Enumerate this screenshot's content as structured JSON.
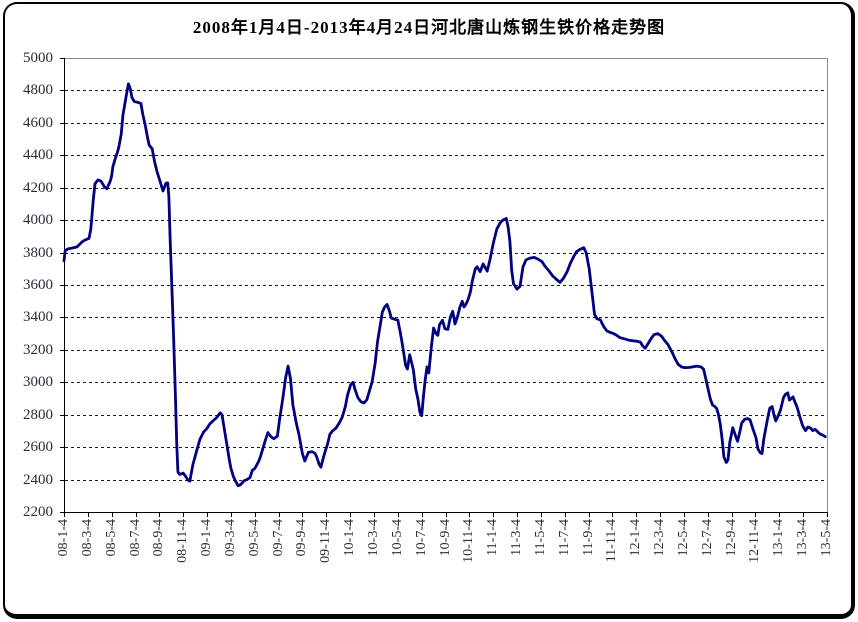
{
  "title": "2008年1月4日-2013年4月24日河北唐山炼钢生铁价格走势图",
  "colors": {
    "line": "#000080",
    "axis": "#000000",
    "plot_border": "#8c8c8c",
    "gridline": "#1c1c1c",
    "tick_label": "#2e2b38",
    "background": "#ffffff",
    "frame_border": "#000000"
  },
  "chart_data": {
    "type": "line",
    "title": "2008年1月4日-2013年4月24日河北唐山炼钢生铁价格走势图",
    "xlabel": "",
    "ylabel": "",
    "ylim": [
      2200,
      5000
    ],
    "y_tick_step": 200,
    "y_ticks": [
      2200,
      2400,
      2600,
      2800,
      3000,
      3200,
      3400,
      3600,
      3800,
      4000,
      4200,
      4400,
      4600,
      4800,
      5000
    ],
    "grid": "horizontal dashed lines at each 200 from 2400 to 4800",
    "legend": "none",
    "x_unit": "months since 2008-01-04",
    "xlim_months": [
      0,
      64
    ],
    "x_tick_labels": [
      "08-1-4",
      "08-3-4",
      "08-5-4",
      "08-7-4",
      "08-9-4",
      "08-11-4",
      "09-1-4",
      "09-3-4",
      "09-5-4",
      "09-7-4",
      "09-9-4",
      "09-11-4",
      "10-1-4",
      "10-3-4",
      "10-5-4",
      "10-7-4",
      "10-9-4",
      "10-11-4",
      "11-1-4",
      "11-3-4",
      "11-5-4",
      "11-7-4",
      "11-9-4",
      "11-11-4",
      "12-1-4",
      "12-3-4",
      "12-5-4",
      "12-7-4",
      "12-9-4",
      "12-11-4",
      "13-1-4",
      "13-3-4",
      "13-5-4"
    ],
    "series": [
      {
        "name": "河北唐山炼钢生铁价格",
        "color": "#000080",
        "points": [
          [
            0,
            3750
          ],
          [
            0.1,
            3810
          ],
          [
            0.3,
            3822
          ],
          [
            0.8,
            3830
          ],
          [
            1.1,
            3835
          ],
          [
            1.5,
            3865
          ],
          [
            1.7,
            3875
          ],
          [
            2.1,
            3888
          ],
          [
            2.25,
            3945
          ],
          [
            2.35,
            4030
          ],
          [
            2.45,
            4120
          ],
          [
            2.6,
            4225
          ],
          [
            2.85,
            4248
          ],
          [
            3.1,
            4240
          ],
          [
            3.4,
            4205
          ],
          [
            3.6,
            4193
          ],
          [
            3.9,
            4245
          ],
          [
            4.0,
            4275
          ],
          [
            4.1,
            4330
          ],
          [
            4.3,
            4380
          ],
          [
            4.45,
            4412
          ],
          [
            4.6,
            4450
          ],
          [
            4.8,
            4530
          ],
          [
            4.95,
            4650
          ],
          [
            5.1,
            4715
          ],
          [
            5.25,
            4780
          ],
          [
            5.4,
            4840
          ],
          [
            5.55,
            4812
          ],
          [
            5.7,
            4755
          ],
          [
            5.9,
            4732
          ],
          [
            6.2,
            4726
          ],
          [
            6.45,
            4720
          ],
          [
            6.6,
            4655
          ],
          [
            6.8,
            4590
          ],
          [
            7.0,
            4510
          ],
          [
            7.15,
            4462
          ],
          [
            7.4,
            4440
          ],
          [
            7.6,
            4360
          ],
          [
            7.8,
            4300
          ],
          [
            8.05,
            4240
          ],
          [
            8.3,
            4180
          ],
          [
            8.55,
            4228
          ],
          [
            8.7,
            4230
          ],
          [
            8.8,
            4140
          ],
          [
            8.9,
            3890
          ],
          [
            9.05,
            3580
          ],
          [
            9.2,
            3260
          ],
          [
            9.35,
            2900
          ],
          [
            9.45,
            2630
          ],
          [
            9.55,
            2448
          ],
          [
            9.7,
            2432
          ],
          [
            10.0,
            2440
          ],
          [
            10.2,
            2420
          ],
          [
            10.4,
            2396
          ],
          [
            10.55,
            2390
          ],
          [
            10.8,
            2490
          ],
          [
            11.1,
            2570
          ],
          [
            11.4,
            2648
          ],
          [
            11.7,
            2692
          ],
          [
            12.0,
            2716
          ],
          [
            12.2,
            2740
          ],
          [
            12.5,
            2762
          ],
          [
            12.8,
            2782
          ],
          [
            13.1,
            2812
          ],
          [
            13.25,
            2800
          ],
          [
            13.5,
            2690
          ],
          [
            13.7,
            2600
          ],
          [
            13.85,
            2530
          ],
          [
            14.0,
            2470
          ],
          [
            14.2,
            2420
          ],
          [
            14.4,
            2388
          ],
          [
            14.6,
            2362
          ],
          [
            14.8,
            2368
          ],
          [
            15.1,
            2392
          ],
          [
            15.4,
            2402
          ],
          [
            15.6,
            2412
          ],
          [
            15.8,
            2458
          ],
          [
            16.0,
            2468
          ],
          [
            16.3,
            2508
          ],
          [
            16.45,
            2535
          ],
          [
            16.6,
            2572
          ],
          [
            16.9,
            2645
          ],
          [
            17.1,
            2690
          ],
          [
            17.35,
            2665
          ],
          [
            17.6,
            2652
          ],
          [
            17.9,
            2668
          ],
          [
            18.1,
            2780
          ],
          [
            18.35,
            2900
          ],
          [
            18.6,
            3030
          ],
          [
            18.8,
            3100
          ],
          [
            19.0,
            3020
          ],
          [
            19.2,
            2860
          ],
          [
            19.5,
            2742
          ],
          [
            19.7,
            2680
          ],
          [
            20.0,
            2560
          ],
          [
            20.2,
            2515
          ],
          [
            20.5,
            2568
          ],
          [
            20.8,
            2572
          ],
          [
            21.05,
            2562
          ],
          [
            21.2,
            2540
          ],
          [
            21.4,
            2495
          ],
          [
            21.55,
            2476
          ],
          [
            21.7,
            2520
          ],
          [
            21.9,
            2572
          ],
          [
            22.1,
            2618
          ],
          [
            22.3,
            2680
          ],
          [
            22.55,
            2702
          ],
          [
            22.8,
            2716
          ],
          [
            23.1,
            2750
          ],
          [
            23.35,
            2788
          ],
          [
            23.6,
            2852
          ],
          [
            23.8,
            2925
          ],
          [
            24.05,
            2985
          ],
          [
            24.25,
            3000
          ],
          [
            24.4,
            2958
          ],
          [
            24.65,
            2905
          ],
          [
            24.9,
            2880
          ],
          [
            25.15,
            2872
          ],
          [
            25.4,
            2892
          ],
          [
            25.65,
            2955
          ],
          [
            25.85,
            3005
          ],
          [
            26.1,
            3120
          ],
          [
            26.3,
            3250
          ],
          [
            26.5,
            3340
          ],
          [
            26.7,
            3432
          ],
          [
            26.9,
            3465
          ],
          [
            27.1,
            3480
          ],
          [
            27.3,
            3438
          ],
          [
            27.45,
            3396
          ],
          [
            27.7,
            3390
          ],
          [
            28.0,
            3384
          ],
          [
            28.2,
            3310
          ],
          [
            28.4,
            3225
          ],
          [
            28.65,
            3105
          ],
          [
            28.8,
            3082
          ],
          [
            29.0,
            3170
          ],
          [
            29.3,
            3078
          ],
          [
            29.5,
            2960
          ],
          [
            29.7,
            2890
          ],
          [
            29.85,
            2815
          ],
          [
            30.0,
            2794
          ],
          [
            30.15,
            2910
          ],
          [
            30.3,
            3015
          ],
          [
            30.45,
            3095
          ],
          [
            30.6,
            3058
          ],
          [
            30.8,
            3210
          ],
          [
            31.0,
            3335
          ],
          [
            31.2,
            3300
          ],
          [
            31.35,
            3290
          ],
          [
            31.5,
            3355
          ],
          [
            31.75,
            3382
          ],
          [
            31.95,
            3330
          ],
          [
            32.2,
            3326
          ],
          [
            32.4,
            3400
          ],
          [
            32.6,
            3438
          ],
          [
            32.8,
            3360
          ],
          [
            33.0,
            3402
          ],
          [
            33.2,
            3462
          ],
          [
            33.4,
            3500
          ],
          [
            33.55,
            3465
          ],
          [
            33.7,
            3480
          ],
          [
            33.9,
            3512
          ],
          [
            34.1,
            3560
          ],
          [
            34.25,
            3625
          ],
          [
            34.5,
            3700
          ],
          [
            34.65,
            3712
          ],
          [
            34.9,
            3682
          ],
          [
            35.15,
            3730
          ],
          [
            35.5,
            3686
          ],
          [
            35.75,
            3762
          ],
          [
            36.0,
            3855
          ],
          [
            36.3,
            3945
          ],
          [
            36.6,
            3985
          ],
          [
            36.8,
            4000
          ],
          [
            37.1,
            4010
          ],
          [
            37.25,
            3958
          ],
          [
            37.4,
            3868
          ],
          [
            37.55,
            3690
          ],
          [
            37.7,
            3608
          ],
          [
            38.0,
            3575
          ],
          [
            38.25,
            3592
          ],
          [
            38.5,
            3712
          ],
          [
            38.75,
            3755
          ],
          [
            39.1,
            3766
          ],
          [
            39.45,
            3770
          ],
          [
            39.75,
            3760
          ],
          [
            40.1,
            3744
          ],
          [
            40.35,
            3716
          ],
          [
            40.7,
            3685
          ],
          [
            41.0,
            3655
          ],
          [
            41.3,
            3635
          ],
          [
            41.6,
            3616
          ],
          [
            41.9,
            3642
          ],
          [
            42.2,
            3682
          ],
          [
            42.45,
            3730
          ],
          [
            42.75,
            3776
          ],
          [
            43.0,
            3806
          ],
          [
            43.3,
            3820
          ],
          [
            43.6,
            3830
          ],
          [
            43.8,
            3798
          ],
          [
            44.05,
            3700
          ],
          [
            44.3,
            3548
          ],
          [
            44.5,
            3420
          ],
          [
            44.7,
            3392
          ],
          [
            45.0,
            3385
          ],
          [
            45.15,
            3360
          ],
          [
            45.3,
            3340
          ],
          [
            45.55,
            3316
          ],
          [
            45.8,
            3308
          ],
          [
            46.1,
            3300
          ],
          [
            46.35,
            3290
          ],
          [
            46.6,
            3276
          ],
          [
            47.0,
            3268
          ],
          [
            47.35,
            3260
          ],
          [
            47.7,
            3256
          ],
          [
            48.0,
            3254
          ],
          [
            48.35,
            3248
          ],
          [
            48.55,
            3224
          ],
          [
            48.75,
            3210
          ],
          [
            49.0,
            3240
          ],
          [
            49.25,
            3270
          ],
          [
            49.5,
            3294
          ],
          [
            49.8,
            3300
          ],
          [
            50.1,
            3286
          ],
          [
            50.4,
            3256
          ],
          [
            50.65,
            3234
          ],
          [
            51.0,
            3186
          ],
          [
            51.25,
            3146
          ],
          [
            51.5,
            3112
          ],
          [
            51.8,
            3094
          ],
          [
            52.1,
            3090
          ],
          [
            52.45,
            3092
          ],
          [
            52.8,
            3096
          ],
          [
            53.1,
            3100
          ],
          [
            53.45,
            3094
          ],
          [
            53.65,
            3080
          ],
          [
            53.9,
            3000
          ],
          [
            54.2,
            2900
          ],
          [
            54.4,
            2860
          ],
          [
            54.6,
            2850
          ],
          [
            54.75,
            2838
          ],
          [
            54.9,
            2800
          ],
          [
            55.05,
            2740
          ],
          [
            55.2,
            2650
          ],
          [
            55.35,
            2540
          ],
          [
            55.55,
            2505
          ],
          [
            55.7,
            2522
          ],
          [
            55.85,
            2630
          ],
          [
            56.1,
            2720
          ],
          [
            56.35,
            2665
          ],
          [
            56.5,
            2636
          ],
          [
            56.7,
            2700
          ],
          [
            56.85,
            2750
          ],
          [
            57.1,
            2772
          ],
          [
            57.35,
            2776
          ],
          [
            57.55,
            2768
          ],
          [
            57.75,
            2720
          ],
          [
            58.05,
            2655
          ],
          [
            58.2,
            2590
          ],
          [
            58.4,
            2566
          ],
          [
            58.55,
            2560
          ],
          [
            58.7,
            2650
          ],
          [
            59.0,
            2770
          ],
          [
            59.2,
            2840
          ],
          [
            59.4,
            2850
          ],
          [
            59.55,
            2800
          ],
          [
            59.7,
            2762
          ],
          [
            59.9,
            2792
          ],
          [
            60.1,
            2830
          ],
          [
            60.35,
            2905
          ],
          [
            60.5,
            2925
          ],
          [
            60.7,
            2935
          ],
          [
            60.85,
            2890
          ],
          [
            61.15,
            2910
          ],
          [
            61.3,
            2880
          ],
          [
            61.5,
            2845
          ],
          [
            61.7,
            2792
          ],
          [
            61.95,
            2732
          ],
          [
            62.2,
            2702
          ],
          [
            62.4,
            2724
          ],
          [
            62.65,
            2716
          ],
          [
            62.8,
            2702
          ],
          [
            63.0,
            2710
          ],
          [
            63.25,
            2692
          ],
          [
            63.4,
            2682
          ],
          [
            63.6,
            2676
          ],
          [
            63.85,
            2665
          ]
        ]
      }
    ]
  }
}
